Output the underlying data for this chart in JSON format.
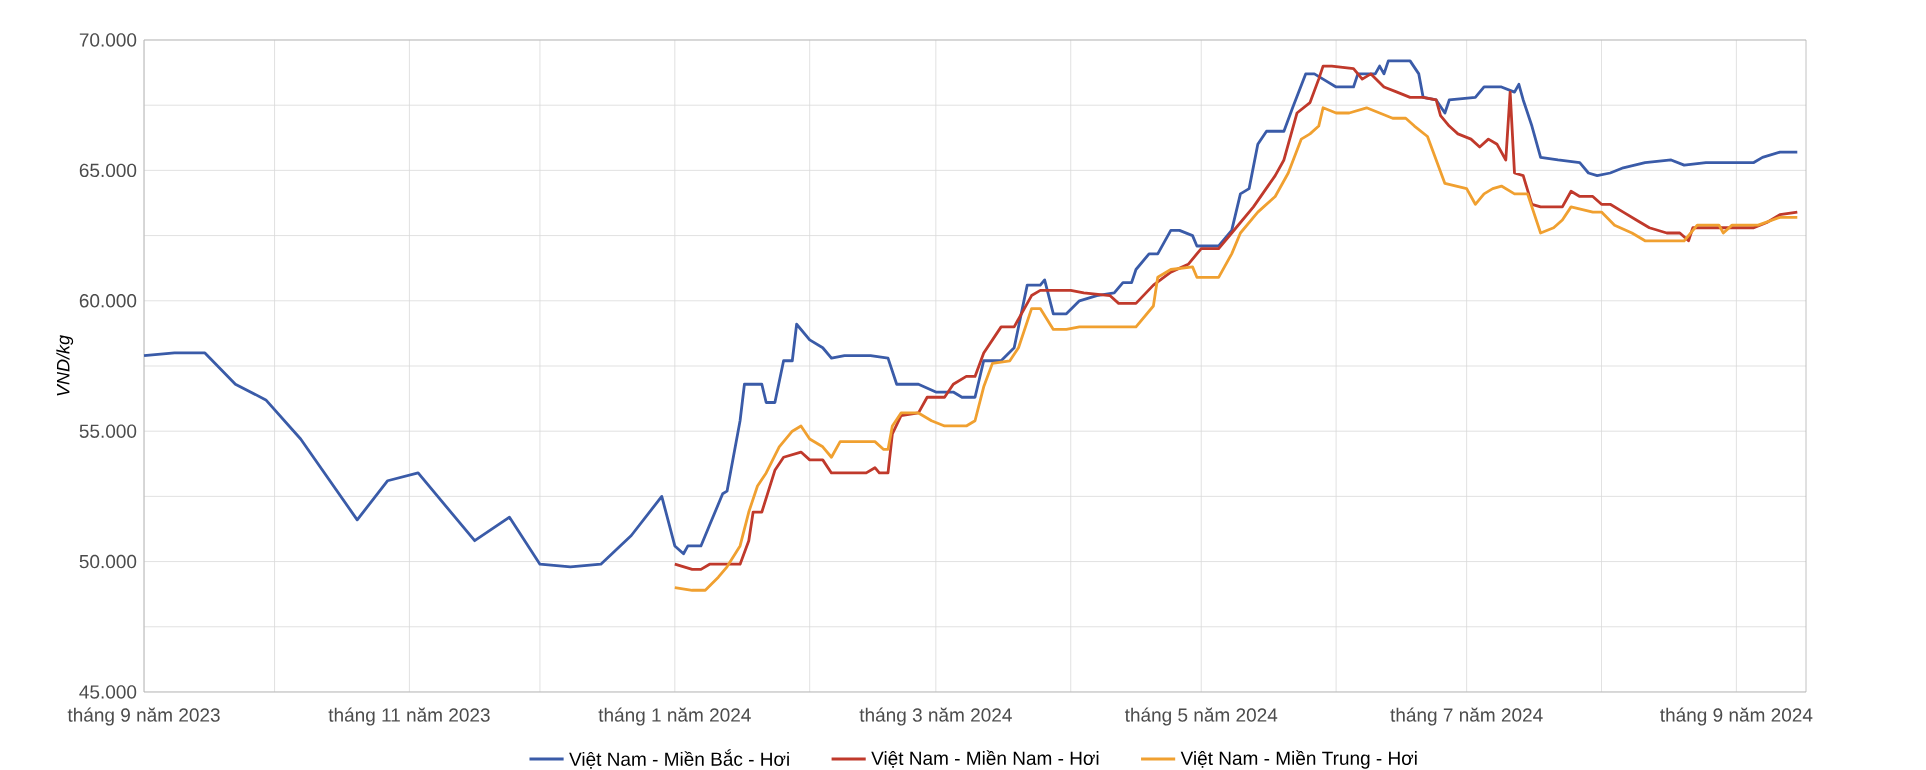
{
  "chart_data": {
    "type": "line",
    "ylabel": "VND/kg",
    "grid": true,
    "legend": "bottom",
    "marker": "none",
    "line_style": "solid",
    "xlim": [
      "2023-09-01",
      "2024-09-17"
    ],
    "ylim": [
      45000,
      70000
    ],
    "xticks": [
      {
        "value": "2023-09-01",
        "label": "tháng 9 năm 2023"
      },
      {
        "value": "2023-10-01",
        "label": null
      },
      {
        "value": "2023-11-01",
        "label": "tháng 11 năm 2023"
      },
      {
        "value": "2023-12-01",
        "label": null
      },
      {
        "value": "2024-01-01",
        "label": "tháng 1 năm 2024"
      },
      {
        "value": "2024-02-01",
        "label": null
      },
      {
        "value": "2024-03-01",
        "label": "tháng 3 năm 2024"
      },
      {
        "value": "2024-04-01",
        "label": null
      },
      {
        "value": "2024-05-01",
        "label": "tháng 5 năm 2024"
      },
      {
        "value": "2024-06-01",
        "label": null
      },
      {
        "value": "2024-07-01",
        "label": "tháng 7 năm 2024"
      },
      {
        "value": "2024-08-01",
        "label": null
      },
      {
        "value": "2024-09-01",
        "label": "tháng 9 năm 2024"
      }
    ],
    "yticks": [
      {
        "value": 45000,
        "label": "45.000"
      },
      {
        "value": 47500,
        "label": null
      },
      {
        "value": 50000,
        "label": "50.000"
      },
      {
        "value": 52500,
        "label": null
      },
      {
        "value": 55000,
        "label": "55.000"
      },
      {
        "value": 57500,
        "label": null
      },
      {
        "value": 60000,
        "label": "60.000"
      },
      {
        "value": 62500,
        "label": null
      },
      {
        "value": 65000,
        "label": "65.000"
      },
      {
        "value": 67500,
        "label": null
      },
      {
        "value": 70000,
        "label": "70.000"
      }
    ],
    "series": [
      {
        "name": "Việt Nam - Miền Bắc - Hơi",
        "color": "#3a5ba8",
        "x": [
          "2023-09-01",
          "2023-09-08",
          "2023-09-15",
          "2023-09-22",
          "2023-09-29",
          "2023-10-07",
          "2023-10-20",
          "2023-10-27",
          "2023-11-03",
          "2023-11-16",
          "2023-11-24",
          "2023-12-01",
          "2023-12-08",
          "2023-12-15",
          "2023-12-22",
          "2023-12-29",
          "2024-01-01",
          "2024-01-03",
          "2024-01-04",
          "2024-01-07",
          "2024-01-09",
          "2024-01-12",
          "2024-01-13",
          "2024-01-16",
          "2024-01-17",
          "2024-01-21",
          "2024-01-22",
          "2024-01-24",
          "2024-01-26",
          "2024-01-28",
          "2024-01-29",
          "2024-02-01",
          "2024-02-04",
          "2024-02-06",
          "2024-02-09",
          "2024-02-15",
          "2024-02-19",
          "2024-02-21",
          "2024-02-26",
          "2024-03-01",
          "2024-03-05",
          "2024-03-07",
          "2024-03-10",
          "2024-03-12",
          "2024-03-16",
          "2024-03-19",
          "2024-03-22",
          "2024-03-25",
          "2024-03-26",
          "2024-03-28",
          "2024-03-31",
          "2024-04-03",
          "2024-04-07",
          "2024-04-11",
          "2024-04-13",
          "2024-04-15",
          "2024-04-16",
          "2024-04-19",
          "2024-04-21",
          "2024-04-24",
          "2024-04-26",
          "2024-04-29",
          "2024-04-30",
          "2024-05-05",
          "2024-05-08",
          "2024-05-10",
          "2024-05-12",
          "2024-05-14",
          "2024-05-16",
          "2024-05-20",
          "2024-05-22",
          "2024-05-25",
          "2024-05-27",
          "2024-05-29",
          "2024-06-01",
          "2024-06-05",
          "2024-06-06",
          "2024-06-10",
          "2024-06-11",
          "2024-06-12",
          "2024-06-13",
          "2024-06-18",
          "2024-06-20",
          "2024-06-21",
          "2024-06-24",
          "2024-06-26",
          "2024-06-27",
          "2024-07-03",
          "2024-07-05",
          "2024-07-09",
          "2024-07-12",
          "2024-07-13",
          "2024-07-14",
          "2024-07-16",
          "2024-07-18",
          "2024-07-22",
          "2024-07-27",
          "2024-07-29",
          "2024-07-31",
          "2024-08-03",
          "2024-08-06",
          "2024-08-11",
          "2024-08-17",
          "2024-08-20",
          "2024-08-25",
          "2024-09-05",
          "2024-09-07",
          "2024-09-11",
          "2024-09-15"
        ],
        "values": [
          57900,
          58000,
          58000,
          56800,
          56200,
          54700,
          51600,
          53100,
          53400,
          50800,
          51700,
          49900,
          49800,
          49900,
          51000,
          52500,
          50600,
          50300,
          50600,
          50600,
          51400,
          52600,
          52700,
          55400,
          56800,
          56800,
          56100,
          56100,
          57700,
          57700,
          59100,
          58500,
          58200,
          57800,
          57900,
          57900,
          57800,
          56800,
          56800,
          56500,
          56500,
          56300,
          56300,
          57700,
          57700,
          58200,
          60600,
          60600,
          60800,
          59500,
          59500,
          60000,
          60200,
          60300,
          60700,
          60700,
          61200,
          61800,
          61800,
          62700,
          62700,
          62500,
          62100,
          62100,
          62700,
          64100,
          64300,
          66000,
          66500,
          66500,
          67400,
          68700,
          68700,
          68500,
          68200,
          68200,
          68700,
          68700,
          69000,
          68700,
          69200,
          69200,
          68700,
          67800,
          67700,
          67200,
          67700,
          67800,
          68200,
          68200,
          68000,
          68300,
          67700,
          66700,
          65500,
          65400,
          65300,
          64900,
          64800,
          64900,
          65100,
          65300,
          65400,
          65200,
          65300,
          65300,
          65500,
          65700,
          65700
        ]
      },
      {
        "name": "Việt Nam - Miền Nam - Hơi",
        "color": "#c0392b",
        "x": [
          "2024-01-01",
          "2024-01-05",
          "2024-01-07",
          "2024-01-09",
          "2024-01-16",
          "2024-01-18",
          "2024-01-19",
          "2024-01-21",
          "2024-01-24",
          "2024-01-26",
          "2024-01-30",
          "2024-02-01",
          "2024-02-04",
          "2024-02-06",
          "2024-02-14",
          "2024-02-16",
          "2024-02-17",
          "2024-02-19",
          "2024-02-20",
          "2024-02-22",
          "2024-02-26",
          "2024-02-28",
          "2024-03-03",
          "2024-03-05",
          "2024-03-08",
          "2024-03-10",
          "2024-03-12",
          "2024-03-16",
          "2024-03-19",
          "2024-03-23",
          "2024-03-25",
          "2024-04-01",
          "2024-04-04",
          "2024-04-10",
          "2024-04-12",
          "2024-04-16",
          "2024-04-20",
          "2024-04-24",
          "2024-04-28",
          "2024-05-01",
          "2024-05-05",
          "2024-05-08",
          "2024-05-13",
          "2024-05-18",
          "2024-05-20",
          "2024-05-23",
          "2024-05-26",
          "2024-05-28",
          "2024-05-29",
          "2024-05-31",
          "2024-06-05",
          "2024-06-07",
          "2024-06-09",
          "2024-06-12",
          "2024-06-15",
          "2024-06-18",
          "2024-06-21",
          "2024-06-24",
          "2024-06-25",
          "2024-06-27",
          "2024-06-29",
          "2024-07-02",
          "2024-07-04",
          "2024-07-06",
          "2024-07-08",
          "2024-07-10",
          "2024-07-11",
          "2024-07-12",
          "2024-07-14",
          "2024-07-16",
          "2024-07-18",
          "2024-07-21",
          "2024-07-23",
          "2024-07-25",
          "2024-07-27",
          "2024-07-30",
          "2024-08-01",
          "2024-08-03",
          "2024-08-06",
          "2024-08-09",
          "2024-08-12",
          "2024-08-16",
          "2024-08-19",
          "2024-08-21",
          "2024-08-22",
          "2024-08-28",
          "2024-09-01",
          "2024-09-05",
          "2024-09-08",
          "2024-09-11",
          "2024-09-15"
        ],
        "values": [
          49900,
          49700,
          49700,
          49900,
          49900,
          50800,
          51900,
          51900,
          53500,
          54000,
          54200,
          53900,
          53900,
          53400,
          53400,
          53600,
          53400,
          53400,
          54900,
          55600,
          55700,
          56300,
          56300,
          56800,
          57100,
          57100,
          58000,
          59000,
          59000,
          60200,
          60400,
          60400,
          60300,
          60200,
          59900,
          59900,
          60600,
          61100,
          61400,
          62000,
          62000,
          62600,
          63600,
          64800,
          65400,
          67200,
          67600,
          68500,
          69000,
          69000,
          68900,
          68500,
          68700,
          68200,
          68000,
          67800,
          67800,
          67700,
          67100,
          66700,
          66400,
          66200,
          65900,
          66200,
          66000,
          65400,
          68000,
          64900,
          64800,
          63700,
          63600,
          63600,
          63600,
          64200,
          64000,
          64000,
          63700,
          63700,
          63400,
          63100,
          62800,
          62600,
          62600,
          62300,
          62800,
          62800,
          62800,
          62800,
          63000,
          63300,
          63400
        ]
      },
      {
        "name": "Việt Nam - Miền Trung - Hơi",
        "color": "#f0a030",
        "x": [
          "2024-01-01",
          "2024-01-05",
          "2024-01-08",
          "2024-01-11",
          "2024-01-13",
          "2024-01-16",
          "2024-01-18",
          "2024-01-20",
          "2024-01-22",
          "2024-01-25",
          "2024-01-28",
          "2024-01-30",
          "2024-02-01",
          "2024-02-04",
          "2024-02-06",
          "2024-02-08",
          "2024-02-16",
          "2024-02-18",
          "2024-02-19",
          "2024-02-20",
          "2024-02-22",
          "2024-02-26",
          "2024-02-29",
          "2024-03-03",
          "2024-03-08",
          "2024-03-10",
          "2024-03-12",
          "2024-03-14",
          "2024-03-18",
          "2024-03-20",
          "2024-03-23",
          "2024-03-25",
          "2024-03-28",
          "2024-03-31",
          "2024-04-03",
          "2024-04-16",
          "2024-04-20",
          "2024-04-21",
          "2024-04-24",
          "2024-04-29",
          "2024-04-30",
          "2024-05-05",
          "2024-05-08",
          "2024-05-10",
          "2024-05-14",
          "2024-05-18",
          "2024-05-21",
          "2024-05-24",
          "2024-05-26",
          "2024-05-28",
          "2024-05-29",
          "2024-06-01",
          "2024-06-04",
          "2024-06-08",
          "2024-06-11",
          "2024-06-14",
          "2024-06-17",
          "2024-06-19",
          "2024-06-22",
          "2024-06-24",
          "2024-06-26",
          "2024-07-01",
          "2024-07-03",
          "2024-07-05",
          "2024-07-07",
          "2024-07-09",
          "2024-07-12",
          "2024-07-15",
          "2024-07-18",
          "2024-07-21",
          "2024-07-23",
          "2024-07-25",
          "2024-07-30",
          "2024-08-01",
          "2024-08-04",
          "2024-08-08",
          "2024-08-11",
          "2024-08-16",
          "2024-08-20",
          "2024-08-23",
          "2024-08-28",
          "2024-08-29",
          "2024-08-31",
          "2024-09-06",
          "2024-09-11",
          "2024-09-15"
        ],
        "values": [
          49000,
          48900,
          48900,
          49400,
          49800,
          50600,
          51900,
          52900,
          53400,
          54400,
          55000,
          55200,
          54700,
          54400,
          54000,
          54600,
          54600,
          54300,
          54300,
          55200,
          55700,
          55700,
          55400,
          55200,
          55200,
          55400,
          56700,
          57600,
          57700,
          58200,
          59700,
          59700,
          58900,
          58900,
          59000,
          59000,
          59800,
          60900,
          61200,
          61300,
          60900,
          60900,
          61800,
          62600,
          63400,
          64000,
          64900,
          66200,
          66400,
          66700,
          67400,
          67200,
          67200,
          67400,
          67200,
          67000,
          67000,
          66700,
          66300,
          65400,
          64500,
          64300,
          63700,
          64100,
          64300,
          64400,
          64100,
          64100,
          62600,
          62800,
          63100,
          63600,
          63400,
          63400,
          62900,
          62600,
          62300,
          62300,
          62300,
          62900,
          62900,
          62600,
          62900,
          62900,
          63200,
          63200
        ]
      }
    ]
  }
}
